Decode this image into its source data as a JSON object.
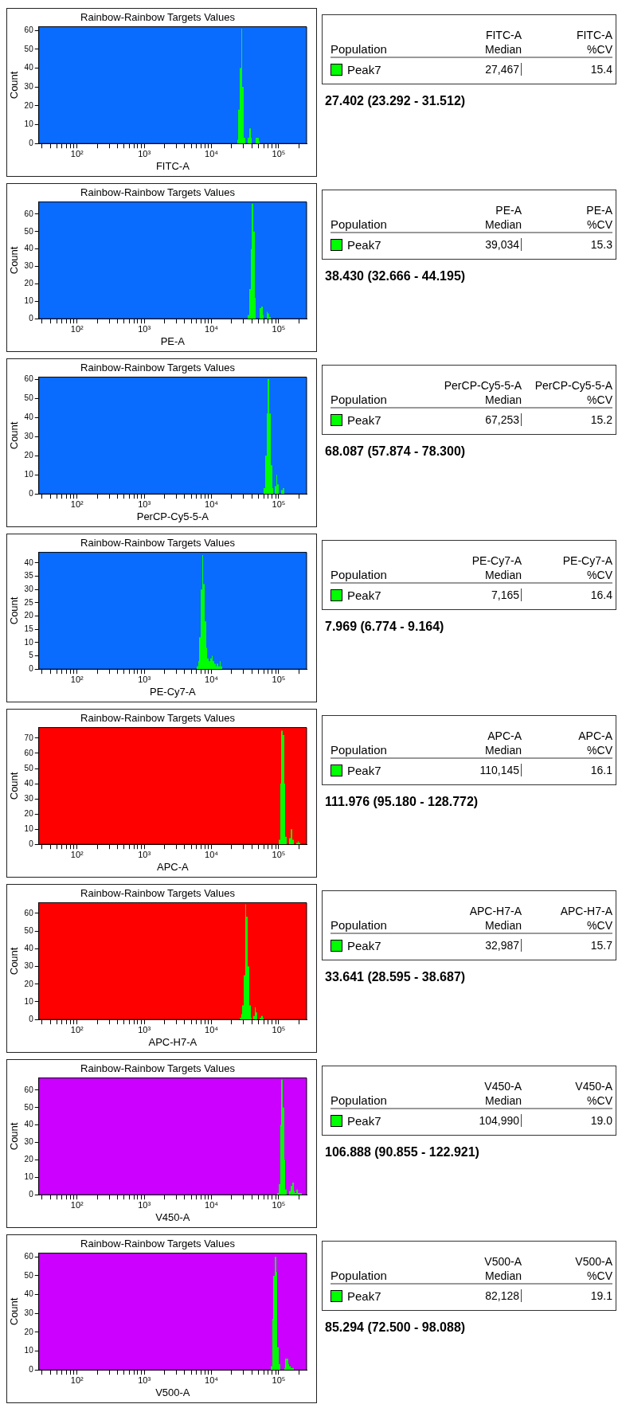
{
  "chart_data": [
    {
      "type": "histogram",
      "title": "Rainbow-Rainbow Targets Values",
      "xlabel": "FITC-A",
      "ylabel": "Count",
      "log": "x",
      "color": "#00ff00",
      "xlim": [
        27,
        260000
      ],
      "ylim": [
        0,
        62
      ],
      "yticks": [
        0,
        10,
        20,
        30,
        40,
        50,
        60
      ],
      "bins": [
        23990,
        25120,
        26300,
        27540,
        28840,
        30200,
        31620,
        34670,
        36310,
        38020,
        39810,
        45710,
        47860,
        50120,
        52480
      ],
      "values": [
        2,
        18,
        40,
        61,
        30,
        3,
        0,
        3,
        8,
        3,
        0,
        3,
        3,
        1
      ],
      "xticks": [
        {
          "value": 30,
          "label": null
        },
        {
          "value": 40,
          "label": null
        },
        {
          "value": 50,
          "label": null
        },
        {
          "value": 60,
          "label": null
        },
        {
          "value": 70,
          "label": null
        },
        {
          "value": 80,
          "label": null
        },
        {
          "value": 90,
          "label": null
        },
        {
          "value": 100,
          "label": "10²"
        },
        {
          "value": 200,
          "label": null
        },
        {
          "value": 300,
          "label": null
        },
        {
          "value": 400,
          "label": null
        },
        {
          "value": 500,
          "label": null
        },
        {
          "value": 600,
          "label": null
        },
        {
          "value": 700,
          "label": null
        },
        {
          "value": 800,
          "label": null
        },
        {
          "value": 900,
          "label": null
        },
        {
          "value": 1000,
          "label": "10³"
        },
        {
          "value": 2000,
          "label": null
        },
        {
          "value": 3000,
          "label": null
        },
        {
          "value": 4000,
          "label": null
        },
        {
          "value": 5000,
          "label": null
        },
        {
          "value": 6000,
          "label": null
        },
        {
          "value": 7000,
          "label": null
        },
        {
          "value": 8000,
          "label": null
        },
        {
          "value": 9000,
          "label": null
        },
        {
          "value": 10000,
          "label": "10⁴"
        },
        {
          "value": 20000,
          "label": null
        },
        {
          "value": 30000,
          "label": null
        },
        {
          "value": 40000,
          "label": null
        },
        {
          "value": 50000,
          "label": null
        },
        {
          "value": 60000,
          "label": null
        },
        {
          "value": 70000,
          "label": null
        },
        {
          "value": 80000,
          "label": null
        },
        {
          "value": 90000,
          "label": null
        },
        {
          "value": 100000,
          "label": "10⁵"
        },
        {
          "value": 200000,
          "label": null
        }
      ]
    },
    {
      "type": "other",
      "categories": [
        "Population",
        "FITC-A\nMedian",
        "FITC-A\n%CV"
      ],
      "annotations": [
        "Peak7",
        "27,467",
        "15.4",
        "27.402 (23.292 - 31.512)"
      ]
    },
    {
      "type": "histogram",
      "title": "Rainbow-Rainbow Targets Values",
      "xlabel": "PE-A",
      "ylabel": "Count",
      "log": "x",
      "color": "#00ff00",
      "xlim": [
        27,
        260000
      ],
      "ylim": [
        0,
        67
      ],
      "yticks": [
        0,
        10,
        20,
        30,
        40,
        50,
        60
      ],
      "bins": [
        34670,
        36310,
        38020,
        39810,
        41690,
        43650,
        45710,
        52480,
        54950,
        57540,
        60260,
        66070,
        69180,
        72440,
        75860
      ],
      "values": [
        2,
        17,
        40,
        66,
        50,
        12,
        0,
        6,
        7,
        2,
        0,
        4,
        3,
        1
      ],
      "xticks": [
        {
          "value": 30,
          "label": null
        },
        {
          "value": 40,
          "label": null
        },
        {
          "value": 50,
          "label": null
        },
        {
          "value": 60,
          "label": null
        },
        {
          "value": 70,
          "label": null
        },
        {
          "value": 80,
          "label": null
        },
        {
          "value": 90,
          "label": null
        },
        {
          "value": 100,
          "label": "10²"
        },
        {
          "value": 200,
          "label": null
        },
        {
          "value": 300,
          "label": null
        },
        {
          "value": 400,
          "label": null
        },
        {
          "value": 500,
          "label": null
        },
        {
          "value": 600,
          "label": null
        },
        {
          "value": 700,
          "label": null
        },
        {
          "value": 800,
          "label": null
        },
        {
          "value": 900,
          "label": null
        },
        {
          "value": 1000,
          "label": "10³"
        },
        {
          "value": 2000,
          "label": null
        },
        {
          "value": 3000,
          "label": null
        },
        {
          "value": 4000,
          "label": null
        },
        {
          "value": 5000,
          "label": null
        },
        {
          "value": 6000,
          "label": null
        },
        {
          "value": 7000,
          "label": null
        },
        {
          "value": 8000,
          "label": null
        },
        {
          "value": 9000,
          "label": null
        },
        {
          "value": 10000,
          "label": "10⁴"
        },
        {
          "value": 20000,
          "label": null
        },
        {
          "value": 30000,
          "label": null
        },
        {
          "value": 40000,
          "label": null
        },
        {
          "value": 50000,
          "label": null
        },
        {
          "value": 60000,
          "label": null
        },
        {
          "value": 70000,
          "label": null
        },
        {
          "value": 80000,
          "label": null
        },
        {
          "value": 90000,
          "label": null
        },
        {
          "value": 100000,
          "label": "10⁵"
        },
        {
          "value": 200000,
          "label": null
        }
      ]
    },
    {
      "type": "other",
      "categories": [
        "Population",
        "PE-A\nMedian",
        "PE-A\n%CV"
      ],
      "annotations": [
        "Peak7",
        "39,034",
        "15.3",
        "38.430 (32.666 - 44.195)"
      ]
    },
    {
      "type": "histogram",
      "title": "Rainbow-Rainbow Targets Values",
      "xlabel": "PerCP-Cy5-5-A",
      "ylabel": "Count",
      "log": "x",
      "color": "#00ff00",
      "xlim": [
        27,
        260000
      ],
      "ylim": [
        0,
        61
      ],
      "yticks": [
        0,
        10,
        20,
        30,
        40,
        50,
        60
      ],
      "bins": [
        60260,
        63100,
        66070,
        69180,
        72440,
        75860,
        79430,
        83180,
        87100,
        91200,
        95500,
        100000,
        109600,
        114800,
        120200
      ],
      "values": [
        3,
        20,
        42,
        60,
        42,
        15,
        3,
        0,
        4,
        10,
        5,
        0,
        2,
        3
      ],
      "xticks": [
        {
          "value": 30,
          "label": null
        },
        {
          "value": 40,
          "label": null
        },
        {
          "value": 50,
          "label": null
        },
        {
          "value": 60,
          "label": null
        },
        {
          "value": 70,
          "label": null
        },
        {
          "value": 80,
          "label": null
        },
        {
          "value": 90,
          "label": null
        },
        {
          "value": 100,
          "label": "10²"
        },
        {
          "value": 200,
          "label": null
        },
        {
          "value": 300,
          "label": null
        },
        {
          "value": 400,
          "label": null
        },
        {
          "value": 500,
          "label": null
        },
        {
          "value": 600,
          "label": null
        },
        {
          "value": 700,
          "label": null
        },
        {
          "value": 800,
          "label": null
        },
        {
          "value": 900,
          "label": null
        },
        {
          "value": 1000,
          "label": "10³"
        },
        {
          "value": 2000,
          "label": null
        },
        {
          "value": 3000,
          "label": null
        },
        {
          "value": 4000,
          "label": null
        },
        {
          "value": 5000,
          "label": null
        },
        {
          "value": 6000,
          "label": null
        },
        {
          "value": 7000,
          "label": null
        },
        {
          "value": 8000,
          "label": null
        },
        {
          "value": 9000,
          "label": null
        },
        {
          "value": 10000,
          "label": "10⁴"
        },
        {
          "value": 20000,
          "label": null
        },
        {
          "value": 30000,
          "label": null
        },
        {
          "value": 40000,
          "label": null
        },
        {
          "value": 50000,
          "label": null
        },
        {
          "value": 60000,
          "label": null
        },
        {
          "value": 70000,
          "label": null
        },
        {
          "value": 80000,
          "label": null
        },
        {
          "value": 90000,
          "label": null
        },
        {
          "value": 100000,
          "label": "10⁵"
        },
        {
          "value": 200000,
          "label": null
        }
      ]
    },
    {
      "type": "other",
      "categories": [
        "Population",
        "PerCP-Cy5-5-A\nMedian",
        "PerCP-Cy5-5-A\n%CV"
      ],
      "annotations": [
        "Peak7",
        "67,253",
        "15.2",
        "68.087 (57.874 - 78.300)"
      ]
    },
    {
      "type": "histogram",
      "title": "Rainbow-Rainbow Targets Values",
      "xlabel": "PE-Cy7-A",
      "ylabel": "Count",
      "log": "x",
      "color": "#00ff00",
      "xlim": [
        27,
        260000
      ],
      "ylim": [
        0,
        44
      ],
      "yticks": [
        0,
        5,
        10,
        15,
        20,
        25,
        30,
        35,
        40
      ],
      "bins": [
        6026,
        6310,
        6607,
        6918,
        7244,
        7586,
        7943,
        8318,
        8710,
        9120,
        9550,
        10000,
        10470,
        10960,
        11480,
        12020,
        12590,
        13180,
        13800,
        14450
      ],
      "values": [
        1,
        3,
        12,
        30,
        43,
        32,
        18,
        8,
        4,
        3,
        4,
        5,
        3,
        2,
        1,
        2,
        1,
        3,
        1
      ],
      "xticks": [
        {
          "value": 30,
          "label": null
        },
        {
          "value": 40,
          "label": null
        },
        {
          "value": 50,
          "label": null
        },
        {
          "value": 60,
          "label": null
        },
        {
          "value": 70,
          "label": null
        },
        {
          "value": 80,
          "label": null
        },
        {
          "value": 90,
          "label": null
        },
        {
          "value": 100,
          "label": "10²"
        },
        {
          "value": 200,
          "label": null
        },
        {
          "value": 300,
          "label": null
        },
        {
          "value": 400,
          "label": null
        },
        {
          "value": 500,
          "label": null
        },
        {
          "value": 600,
          "label": null
        },
        {
          "value": 700,
          "label": null
        },
        {
          "value": 800,
          "label": null
        },
        {
          "value": 900,
          "label": null
        },
        {
          "value": 1000,
          "label": "10³"
        },
        {
          "value": 2000,
          "label": null
        },
        {
          "value": 3000,
          "label": null
        },
        {
          "value": 4000,
          "label": null
        },
        {
          "value": 5000,
          "label": null
        },
        {
          "value": 6000,
          "label": null
        },
        {
          "value": 7000,
          "label": null
        },
        {
          "value": 8000,
          "label": null
        },
        {
          "value": 9000,
          "label": null
        },
        {
          "value": 10000,
          "label": "10⁴"
        },
        {
          "value": 20000,
          "label": null
        },
        {
          "value": 30000,
          "label": null
        },
        {
          "value": 40000,
          "label": null
        },
        {
          "value": 50000,
          "label": null
        },
        {
          "value": 60000,
          "label": null
        },
        {
          "value": 70000,
          "label": null
        },
        {
          "value": 80000,
          "label": null
        },
        {
          "value": 90000,
          "label": null
        },
        {
          "value": 100000,
          "label": "10⁵"
        },
        {
          "value": 200000,
          "label": null
        }
      ]
    },
    {
      "type": "other",
      "categories": [
        "Population",
        "PE-Cy7-A\nMedian",
        "PE-Cy7-A\n%CV"
      ],
      "annotations": [
        "Peak7",
        "7,165",
        "16.4",
        "7.969 (6.774 - 9.164)"
      ]
    },
    {
      "type": "histogram",
      "title": "Rainbow-Rainbow Targets Values",
      "xlabel": "APC-A",
      "ylabel": "Count",
      "log": "x",
      "color": "#00ff00",
      "xlim": [
        27,
        260000
      ],
      "ylim": [
        0,
        77
      ],
      "yticks": [
        0,
        10,
        20,
        30,
        40,
        50,
        60,
        70
      ],
      "bins": [
        100000,
        104700,
        109600,
        114800,
        120200,
        125900,
        131800,
        144500,
        151400,
        158500,
        166000,
        182000,
        190500,
        199500,
        208900
      ],
      "values": [
        3,
        40,
        75,
        72,
        40,
        5,
        0,
        4,
        10,
        3,
        0,
        1,
        2,
        1
      ],
      "xticks": [
        {
          "value": 30,
          "label": null
        },
        {
          "value": 40,
          "label": null
        },
        {
          "value": 50,
          "label": null
        },
        {
          "value": 60,
          "label": null
        },
        {
          "value": 70,
          "label": null
        },
        {
          "value": 80,
          "label": null
        },
        {
          "value": 90,
          "label": null
        },
        {
          "value": 100,
          "label": "10²"
        },
        {
          "value": 200,
          "label": null
        },
        {
          "value": 300,
          "label": null
        },
        {
          "value": 400,
          "label": null
        },
        {
          "value": 500,
          "label": null
        },
        {
          "value": 600,
          "label": null
        },
        {
          "value": 700,
          "label": null
        },
        {
          "value": 800,
          "label": null
        },
        {
          "value": 900,
          "label": null
        },
        {
          "value": 1000,
          "label": "10³"
        },
        {
          "value": 2000,
          "label": null
        },
        {
          "value": 3000,
          "label": null
        },
        {
          "value": 4000,
          "label": null
        },
        {
          "value": 5000,
          "label": null
        },
        {
          "value": 6000,
          "label": null
        },
        {
          "value": 7000,
          "label": null
        },
        {
          "value": 8000,
          "label": null
        },
        {
          "value": 9000,
          "label": null
        },
        {
          "value": 10000,
          "label": "10⁴"
        },
        {
          "value": 20000,
          "label": null
        },
        {
          "value": 30000,
          "label": null
        },
        {
          "value": 40000,
          "label": null
        },
        {
          "value": 50000,
          "label": null
        },
        {
          "value": 60000,
          "label": null
        },
        {
          "value": 70000,
          "label": null
        },
        {
          "value": 80000,
          "label": null
        },
        {
          "value": 90000,
          "label": null
        },
        {
          "value": 100000,
          "label": "10⁵"
        },
        {
          "value": 200000,
          "label": null
        }
      ]
    },
    {
      "type": "other",
      "categories": [
        "Population",
        "APC-A\nMedian",
        "APC-A\n%CV"
      ],
      "annotations": [
        "Peak7",
        "110,145",
        "16.1",
        "111.976 (95.180 - 128.772)"
      ]
    },
    {
      "type": "histogram",
      "title": "Rainbow-Rainbow Targets Values",
      "xlabel": "APC-H7-A",
      "ylabel": "Count",
      "log": "x",
      "color": "#00ff00",
      "xlim": [
        27,
        260000
      ],
      "ylim": [
        0,
        66
      ],
      "yticks": [
        0,
        10,
        20,
        30,
        40,
        50,
        60
      ],
      "bins": [
        26300,
        27540,
        28840,
        30200,
        31620,
        33110,
        34670,
        36310,
        38020,
        39810,
        41690,
        43650,
        45710,
        47860,
        52480,
        54950,
        57540,
        60260
      ],
      "values": [
        1,
        3,
        8,
        25,
        65,
        58,
        30,
        8,
        1,
        0,
        2,
        7,
        4,
        0,
        1,
        2,
        1
      ],
      "xticks": [
        {
          "value": 30,
          "label": null
        },
        {
          "value": 40,
          "label": null
        },
        {
          "value": 50,
          "label": null
        },
        {
          "value": 60,
          "label": null
        },
        {
          "value": 70,
          "label": null
        },
        {
          "value": 80,
          "label": null
        },
        {
          "value": 90,
          "label": null
        },
        {
          "value": 100,
          "label": "10²"
        },
        {
          "value": 200,
          "label": null
        },
        {
          "value": 300,
          "label": null
        },
        {
          "value": 400,
          "label": null
        },
        {
          "value": 500,
          "label": null
        },
        {
          "value": 600,
          "label": null
        },
        {
          "value": 700,
          "label": null
        },
        {
          "value": 800,
          "label": null
        },
        {
          "value": 900,
          "label": null
        },
        {
          "value": 1000,
          "label": "10³"
        },
        {
          "value": 2000,
          "label": null
        },
        {
          "value": 3000,
          "label": null
        },
        {
          "value": 4000,
          "label": null
        },
        {
          "value": 5000,
          "label": null
        },
        {
          "value": 6000,
          "label": null
        },
        {
          "value": 7000,
          "label": null
        },
        {
          "value": 8000,
          "label": null
        },
        {
          "value": 9000,
          "label": null
        },
        {
          "value": 10000,
          "label": "10⁴"
        },
        {
          "value": 20000,
          "label": null
        },
        {
          "value": 30000,
          "label": null
        },
        {
          "value": 40000,
          "label": null
        },
        {
          "value": 50000,
          "label": null
        },
        {
          "value": 60000,
          "label": null
        },
        {
          "value": 70000,
          "label": null
        },
        {
          "value": 80000,
          "label": null
        },
        {
          "value": 90000,
          "label": null
        },
        {
          "value": 100000,
          "label": "10⁵"
        },
        {
          "value": 200000,
          "label": null
        }
      ]
    },
    {
      "type": "other",
      "categories": [
        "Population",
        "APC-H7-A\nMedian",
        "APC-H7-A\n%CV"
      ],
      "annotations": [
        "Peak7",
        "32,987",
        "15.7",
        "33.641 (28.595 - 38.687)"
      ]
    },
    {
      "type": "histogram",
      "title": "Rainbow-Rainbow Targets Values",
      "xlabel": "V450-A",
      "ylabel": "Count",
      "log": "x",
      "color": "#00ff00",
      "xlim": [
        27,
        260000
      ],
      "ylim": [
        0,
        67
      ],
      "yticks": [
        0,
        10,
        20,
        30,
        40,
        50,
        60
      ],
      "bins": [
        95500,
        100000,
        104700,
        109600,
        114800,
        120200,
        125900,
        131800,
        144500,
        151400,
        158500,
        166000,
        173800,
        182000,
        190500,
        218800
      ],
      "values": [
        1,
        6,
        40,
        66,
        50,
        20,
        3,
        0,
        2,
        5,
        7,
        2,
        1,
        3,
        1
      ],
      "xticks": [
        {
          "value": 30,
          "label": null
        },
        {
          "value": 40,
          "label": null
        },
        {
          "value": 50,
          "label": null
        },
        {
          "value": 60,
          "label": null
        },
        {
          "value": 70,
          "label": null
        },
        {
          "value": 80,
          "label": null
        },
        {
          "value": 90,
          "label": null
        },
        {
          "value": 100,
          "label": "10²"
        },
        {
          "value": 200,
          "label": null
        },
        {
          "value": 300,
          "label": null
        },
        {
          "value": 400,
          "label": null
        },
        {
          "value": 500,
          "label": null
        },
        {
          "value": 600,
          "label": null
        },
        {
          "value": 700,
          "label": null
        },
        {
          "value": 800,
          "label": null
        },
        {
          "value": 900,
          "label": null
        },
        {
          "value": 1000,
          "label": "10³"
        },
        {
          "value": 2000,
          "label": null
        },
        {
          "value": 3000,
          "label": null
        },
        {
          "value": 4000,
          "label": null
        },
        {
          "value": 5000,
          "label": null
        },
        {
          "value": 6000,
          "label": null
        },
        {
          "value": 7000,
          "label": null
        },
        {
          "value": 8000,
          "label": null
        },
        {
          "value": 9000,
          "label": null
        },
        {
          "value": 10000,
          "label": "10⁴"
        },
        {
          "value": 20000,
          "label": null
        },
        {
          "value": 30000,
          "label": null
        },
        {
          "value": 40000,
          "label": null
        },
        {
          "value": 50000,
          "label": null
        },
        {
          "value": 60000,
          "label": null
        },
        {
          "value": 70000,
          "label": null
        },
        {
          "value": 80000,
          "label": null
        },
        {
          "value": 90000,
          "label": null
        },
        {
          "value": 100000,
          "label": "10⁵"
        },
        {
          "value": 200000,
          "label": null
        }
      ]
    },
    {
      "type": "other",
      "categories": [
        "Population",
        "V450-A\nMedian",
        "V450-A\n%CV"
      ],
      "annotations": [
        "Peak7",
        "104,990",
        "19.0",
        "106.888 (90.855 - 122.921)"
      ]
    },
    {
      "type": "histogram",
      "title": "Rainbow-Rainbow Targets Values",
      "xlabel": "V500-A",
      "ylabel": "Count",
      "log": "x",
      "color": "#00ff00",
      "xlim": [
        27,
        260000
      ],
      "ylim": [
        0,
        62
      ],
      "yticks": [
        0,
        10,
        20,
        30,
        40,
        50,
        60
      ],
      "bins": [
        75860,
        79430,
        83180,
        87100,
        91200,
        95500,
        100000,
        104700,
        120200,
        125900,
        131800,
        138000,
        144500,
        151400,
        158500,
        166000
      ],
      "values": [
        2,
        27,
        50,
        60,
        52,
        12,
        3,
        0,
        1,
        6,
        6,
        3,
        2,
        1,
        1
      ],
      "xticks": [
        {
          "value": 30,
          "label": null
        },
        {
          "value": 40,
          "label": null
        },
        {
          "value": 50,
          "label": null
        },
        {
          "value": 60,
          "label": null
        },
        {
          "value": 70,
          "label": null
        },
        {
          "value": 80,
          "label": null
        },
        {
          "value": 90,
          "label": null
        },
        {
          "value": 100,
          "label": "10²"
        },
        {
          "value": 200,
          "label": null
        },
        {
          "value": 300,
          "label": null
        },
        {
          "value": 400,
          "label": null
        },
        {
          "value": 500,
          "label": null
        },
        {
          "value": 600,
          "label": null
        },
        {
          "value": 700,
          "label": null
        },
        {
          "value": 800,
          "label": null
        },
        {
          "value": 900,
          "label": null
        },
        {
          "value": 1000,
          "label": "10³"
        },
        {
          "value": 2000,
          "label": null
        },
        {
          "value": 3000,
          "label": null
        },
        {
          "value": 4000,
          "label": null
        },
        {
          "value": 5000,
          "label": null
        },
        {
          "value": 6000,
          "label": null
        },
        {
          "value": 7000,
          "label": null
        },
        {
          "value": 8000,
          "label": null
        },
        {
          "value": 9000,
          "label": null
        },
        {
          "value": 10000,
          "label": "10⁴"
        },
        {
          "value": 20000,
          "label": null
        },
        {
          "value": 30000,
          "label": null
        },
        {
          "value": 40000,
          "label": null
        },
        {
          "value": 50000,
          "label": null
        },
        {
          "value": 60000,
          "label": null
        },
        {
          "value": 70000,
          "label": null
        },
        {
          "value": 80000,
          "label": null
        },
        {
          "value": 90000,
          "label": null
        },
        {
          "value": 100000,
          "label": "10⁵"
        },
        {
          "value": 200000,
          "label": null
        }
      ]
    },
    {
      "type": "other",
      "categories": [
        "Population",
        "V500-A\nMedian",
        "V500-A\n%CV"
      ],
      "annotations": [
        "Peak7",
        "82,128",
        "19.1",
        "85.294 (72.500 - 98.088)"
      ]
    }
  ]
}
